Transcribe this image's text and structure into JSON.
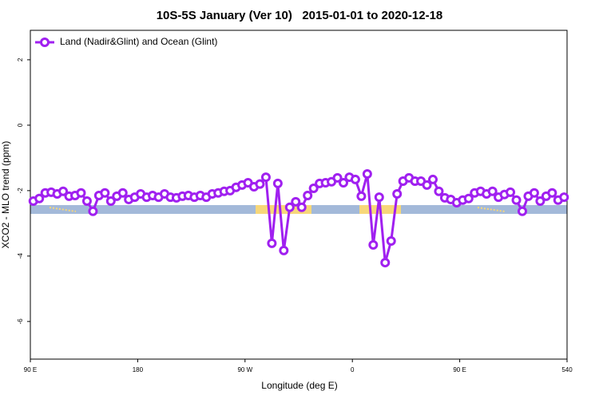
{
  "chart_data": {
    "type": "line",
    "title": "10S-5S January (Ver 10)   2015-01-01 to 2020-12-18",
    "xlabel": "Longitude (deg E)",
    "ylabel": "XCO2 - MLO trend (ppm)",
    "xlim": [
      90,
      540
    ],
    "ylim": [
      -7.15,
      2.9
    ],
    "xticks": [
      {
        "value": 90,
        "label": "90 E"
      },
      180,
      {
        "value": 270,
        "label": "90 W"
      },
      {
        "value": 360,
        "label": "0"
      },
      {
        "value": 450,
        "label": "90 E"
      },
      540
    ],
    "yticks": [
      2,
      0,
      -2,
      -4,
      -6
    ],
    "legend": "topleft",
    "x": [
      92.5,
      97.5,
      102.5,
      107.5,
      112.5,
      117.5,
      122.5,
      127.5,
      132.5,
      137.5,
      142.5,
      147.5,
      152.5,
      157.5,
      162.5,
      167.5,
      172.5,
      177.5,
      182.5,
      187.5,
      192.5,
      197.5,
      202.5,
      207.5,
      212.5,
      217.5,
      222.5,
      227.5,
      232.5,
      237.5,
      242.5,
      247.5,
      252.5,
      257.5,
      262.5,
      267.5,
      272.5,
      277.5,
      282.5,
      287.5,
      292.5,
      297.5,
      302.5,
      307.5,
      312.5,
      317.5,
      322.5,
      327.5,
      332.5,
      337.5,
      342.5,
      347.5,
      352.5,
      357.5,
      362.5,
      367.5,
      372.5,
      377.5,
      382.5,
      387.5,
      392.5,
      397.5,
      402.5,
      407.5,
      412.5,
      417.5,
      422.5,
      427.5,
      432.5,
      437.5,
      442.5,
      447.5,
      452.5,
      457.5,
      462.5,
      467.5,
      472.5,
      477.5,
      482.5,
      487.5,
      492.5,
      497.5,
      502.5,
      507.5,
      512.5,
      517.5,
      522.5,
      527.5,
      532.5,
      537.5
    ],
    "series": [
      {
        "name": "Land (Nadir&Glint) and Ocean (Glint)",
        "color": "#a020f0",
        "values": [
          -2.32,
          -2.24,
          -2.07,
          -2.05,
          -2.1,
          -2.02,
          -2.17,
          -2.15,
          -2.07,
          -2.32,
          -2.63,
          -2.15,
          -2.07,
          -2.32,
          -2.17,
          -2.07,
          -2.27,
          -2.2,
          -2.1,
          -2.2,
          -2.15,
          -2.2,
          -2.1,
          -2.2,
          -2.22,
          -2.17,
          -2.15,
          -2.2,
          -2.15,
          -2.2,
          -2.1,
          -2.07,
          -2.02,
          -2.0,
          -1.9,
          -1.83,
          -1.76,
          -1.88,
          -1.8,
          -1.59,
          -3.61,
          -1.78,
          -3.83,
          -2.51,
          -2.34,
          -2.51,
          -2.15,
          -1.93,
          -1.78,
          -1.76,
          -1.73,
          -1.61,
          -1.76,
          -1.59,
          -1.66,
          -2.17,
          -1.49,
          -3.66,
          -2.2,
          -4.2,
          -3.54,
          -2.1,
          -1.71,
          -1.61,
          -1.71,
          -1.71,
          -1.83,
          -1.66,
          -2.02,
          -2.22,
          -2.27,
          -2.37,
          -2.29,
          -2.24,
          -2.07,
          -2.02,
          -2.1,
          -2.02,
          -2.2,
          -2.12,
          -2.05,
          -2.29,
          -2.63,
          -2.17,
          -2.07,
          -2.32,
          -2.17,
          -2.07,
          -2.29,
          -2.2
        ]
      }
    ]
  }
}
